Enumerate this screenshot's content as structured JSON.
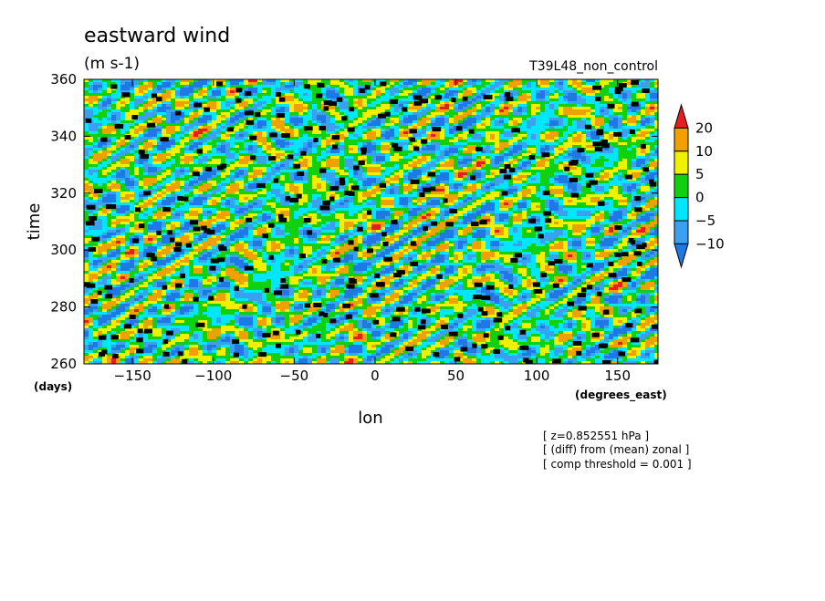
{
  "chart_data": {
    "type": "heatmap",
    "title": "eastward wind",
    "units": "(m s-1)",
    "run_label": "T39L48_non_control",
    "xlabel": "lon",
    "ylabel": "time",
    "x_units": "(degrees_east)",
    "y_units": "(days)",
    "xlim": [
      -180,
      175
    ],
    "ylim": [
      260,
      360
    ],
    "x_ticks": [
      -150,
      -100,
      -50,
      0,
      50,
      100,
      150
    ],
    "y_ticks": [
      260,
      280,
      300,
      320,
      340,
      360
    ],
    "x_tick_labels": [
      "−150",
      "−100",
      "−50",
      "0",
      "50",
      "100",
      "150"
    ],
    "y_tick_labels": [
      "260",
      "280",
      "300",
      "320",
      "340",
      "360"
    ],
    "colorbar": {
      "levels": [
        -10,
        -5,
        0,
        5,
        10,
        20
      ],
      "level_labels": [
        "−10",
        "−5",
        "0",
        "5",
        "10",
        "20"
      ],
      "colors": [
        "#1e78e6",
        "#3ca0f0",
        "#00e6ff",
        "#10d010",
        "#f0f000",
        "#f0a000",
        "#e61e1e"
      ]
    },
    "notes": [
      "[ z=0.852551 hPa ]",
      "[ (diff) from (mean) zonal ]",
      "[ comp threshold = 0.001 ]"
    ]
  }
}
